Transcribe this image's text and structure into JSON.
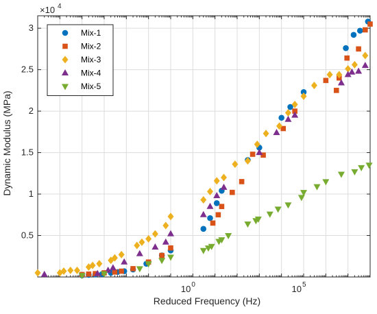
{
  "chart_data": {
    "type": "scatter",
    "xlabel": "Reduced Frequency (Hz)",
    "ylabel": "Dynamic Modulus (MPa)",
    "x_scale": "log",
    "xlim": [
      1e-07,
      100000000.0
    ],
    "ylim": [
      0,
      31500
    ],
    "y_multiplier_label": "×10^4",
    "x_ticks": [
      {
        "value": 1,
        "base": "10",
        "exp": "0"
      },
      {
        "value": 100000,
        "base": "10",
        "exp": "5"
      }
    ],
    "y_ticks": [
      {
        "value": 5000,
        "label": "0.5"
      },
      {
        "value": 10000,
        "label": "1"
      },
      {
        "value": 15000,
        "label": "1.5"
      },
      {
        "value": 20000,
        "label": "2"
      },
      {
        "value": 25000,
        "label": "2.5"
      },
      {
        "value": 30000,
        "label": "3"
      }
    ],
    "grid": true,
    "legend_position": "top-left",
    "series": [
      {
        "name": "Mix-1",
        "marker": "circle",
        "color": "#0072BD",
        "points": [
          [
            1e-05,
            200
          ],
          [
            2e-05,
            250
          ],
          [
            4e-05,
            300
          ],
          [
            8e-05,
            350
          ],
          [
            0.0002,
            500
          ],
          [
            0.0004,
            600
          ],
          [
            0.0008,
            700
          ],
          [
            0.002,
            900
          ],
          [
            0.008,
            1600
          ],
          [
            0.04,
            2600
          ],
          [
            0.1,
            3200
          ],
          [
            3,
            5800
          ],
          [
            6,
            7100
          ],
          [
            12,
            8900
          ],
          [
            20,
            10400
          ],
          [
            300,
            14100
          ],
          [
            1000,
            15600
          ],
          [
            10000,
            19200
          ],
          [
            25000,
            20500
          ],
          [
            100000,
            22300
          ],
          [
            8000000,
            27600
          ],
          [
            18000000,
            29200
          ],
          [
            35000000,
            29700
          ],
          [
            80000000,
            30800
          ],
          [
            120000000,
            31000
          ]
        ]
      },
      {
        "name": "Mix-2",
        "marker": "square",
        "color": "#D95319",
        "points": [
          [
            1e-05,
            300
          ],
          [
            2e-05,
            350
          ],
          [
            4e-05,
            400
          ],
          [
            0.0001,
            500
          ],
          [
            0.0003,
            600
          ],
          [
            0.0006,
            700
          ],
          [
            0.002,
            1000
          ],
          [
            0.01,
            1800
          ],
          [
            0.04,
            2600
          ],
          [
            0.1,
            3500
          ],
          [
            8,
            6500
          ],
          [
            14,
            7500
          ],
          [
            20,
            8500
          ],
          [
            60,
            10200
          ],
          [
            160,
            11500
          ],
          [
            500,
            14800
          ],
          [
            1500,
            14700
          ],
          [
            12000,
            17900
          ],
          [
            40000,
            20000
          ],
          [
            1000000,
            23700
          ],
          [
            3000000,
            22500
          ],
          [
            4000000,
            24000
          ],
          [
            9000000,
            26400
          ],
          [
            30000000,
            27500
          ],
          [
            60000000,
            29800
          ],
          [
            100000000,
            30500
          ],
          [
            150000000,
            30900
          ]
        ]
      },
      {
        "name": "Mix-3",
        "marker": "diamond",
        "color": "#EDB120",
        "points": [
          [
            1e-07,
            500
          ],
          [
            1e-06,
            500
          ],
          [
            1.5e-06,
            700
          ],
          [
            3e-06,
            800
          ],
          [
            6e-06,
            800
          ],
          [
            2e-05,
            1200
          ],
          [
            3e-05,
            1400
          ],
          [
            6e-05,
            1600
          ],
          [
            0.0002,
            2000
          ],
          [
            0.0003,
            2300
          ],
          [
            0.0006,
            2700
          ],
          [
            0.003,
            3800
          ],
          [
            0.005,
            4200
          ],
          [
            0.01,
            4600
          ],
          [
            0.02,
            5200
          ],
          [
            0.06,
            6200
          ],
          [
            0.1,
            7300
          ],
          [
            3,
            9300
          ],
          [
            6,
            10300
          ],
          [
            12,
            11600
          ],
          [
            25,
            12000
          ],
          [
            80,
            13600
          ],
          [
            300,
            14000
          ],
          [
            800,
            16000
          ],
          [
            2000,
            17300
          ],
          [
            8000,
            18200
          ],
          [
            20000,
            19800
          ],
          [
            40000,
            20800
          ],
          [
            100000,
            21800
          ],
          [
            300000,
            23100
          ],
          [
            1500000,
            24400
          ],
          [
            4000000,
            24400
          ],
          [
            10000000,
            25100
          ],
          [
            20000000,
            25600
          ],
          [
            60000000,
            26700
          ],
          [
            120000000,
            27200
          ]
        ]
      },
      {
        "name": "Mix-4",
        "marker": "triangle-up",
        "color": "#7E2F8E",
        "points": [
          [
            2e-07,
            300
          ],
          [
            5e-05,
            400
          ],
          [
            0.00015,
            800
          ],
          [
            0.00025,
            1100
          ],
          [
            0.0008,
            1800
          ],
          [
            0.004,
            2800
          ],
          [
            0.02,
            3600
          ],
          [
            0.06,
            4200
          ],
          [
            0.1,
            5200
          ],
          [
            3,
            7500
          ],
          [
            6,
            8500
          ],
          [
            12,
            9800
          ],
          [
            25,
            10800
          ],
          [
            1000,
            15000
          ],
          [
            6000,
            17400
          ],
          [
            20000,
            19000
          ],
          [
            40000,
            19500
          ],
          [
            5000000,
            23400
          ],
          [
            10000000,
            24400
          ],
          [
            15000000,
            24700
          ],
          [
            30000000,
            24800
          ],
          [
            60000000,
            25500
          ],
          [
            120000000,
            26000
          ]
        ]
      },
      {
        "name": "Mix-5",
        "marker": "triangle-down",
        "color": "#77AC30",
        "points": [
          [
            1e-05,
            200
          ],
          [
            0.0001,
            400
          ],
          [
            0.004,
            1000
          ],
          [
            0.01,
            1600
          ],
          [
            0.04,
            2000
          ],
          [
            0.1,
            2400
          ],
          [
            3,
            3200
          ],
          [
            5,
            3500
          ],
          [
            7,
            3700
          ],
          [
            15,
            4300
          ],
          [
            20,
            4500
          ],
          [
            40,
            5000
          ],
          [
            300,
            6400
          ],
          [
            700,
            6800
          ],
          [
            900,
            7000
          ],
          [
            3000,
            7600
          ],
          [
            7000,
            8200
          ],
          [
            20000,
            8700
          ],
          [
            80000,
            9600
          ],
          [
            100000,
            10200
          ],
          [
            400000,
            10900
          ],
          [
            1000000,
            11500
          ],
          [
            5000000,
            12400
          ],
          [
            20000000,
            12700
          ],
          [
            40000000,
            13200
          ],
          [
            90000000,
            13500
          ]
        ]
      }
    ]
  }
}
